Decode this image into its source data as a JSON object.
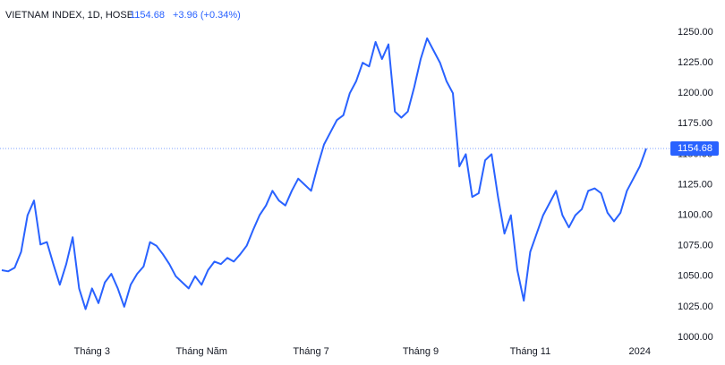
{
  "chart_data": {
    "type": "line",
    "title": "VIETNAM INDEX, 1D, HOSE",
    "subtitle": "+3.96 (+0.34%)",
    "color": "#2962ff",
    "grid": false,
    "categories": [
      null,
      null,
      null,
      null,
      null,
      null,
      null,
      null,
      null,
      null,
      null,
      null,
      null,
      null,
      "Tháng 3",
      null,
      null,
      null,
      null,
      null,
      null,
      null,
      null,
      null,
      null,
      null,
      null,
      null,
      null,
      null,
      null,
      "Tháng Năm",
      null,
      null,
      null,
      null,
      null,
      null,
      null,
      null,
      null,
      null,
      null,
      null,
      null,
      null,
      null,
      null,
      "Tháng 7",
      null,
      null,
      null,
      null,
      null,
      null,
      null,
      null,
      null,
      null,
      null,
      null,
      null,
      null,
      null,
      null,
      "Tháng 9",
      null,
      null,
      null,
      null,
      null,
      null,
      null,
      null,
      null,
      null,
      null,
      null,
      null,
      null,
      null,
      null,
      "Tháng 11",
      null,
      null,
      null,
      null,
      null,
      null,
      null,
      null,
      null,
      null,
      null,
      null,
      null,
      null,
      null,
      null,
      "2024",
      null
    ],
    "values": [
      1055,
      1054,
      1057,
      1070,
      1100,
      1112,
      1076,
      1078,
      1060,
      1043,
      1060,
      1082,
      1040,
      1023,
      1040,
      1028,
      1045,
      1052,
      1040,
      1025,
      1043,
      1052,
      1058,
      1078,
      1075,
      1068,
      1060,
      1050,
      1045,
      1040,
      1050,
      1043,
      1055,
      1062,
      1060,
      1065,
      1062,
      1068,
      1075,
      1088,
      1100,
      1108,
      1120,
      1112,
      1108,
      1120,
      1130,
      1125,
      1120,
      1140,
      1158,
      1168,
      1178,
      1182,
      1200,
      1210,
      1225,
      1222,
      1242,
      1228,
      1240,
      1185,
      1180,
      1185,
      1205,
      1228,
      1245,
      1235,
      1225,
      1210,
      1200,
      1140,
      1150,
      1115,
      1118,
      1145,
      1150,
      1115,
      1085,
      1100,
      1055,
      1030,
      1070,
      1085,
      1100,
      1110,
      1120,
      1100,
      1090,
      1100,
      1105,
      1120,
      1122,
      1118,
      1102,
      1095,
      1102,
      1120,
      1130,
      1140,
      1154.68
    ],
    "ylim": [
      1000,
      1250
    ],
    "yticks": [
      {
        "value": 1000,
        "label": "1000.00"
      },
      {
        "value": 1025,
        "label": "1025.00"
      },
      {
        "value": 1050,
        "label": "1050.00"
      },
      {
        "value": 1075,
        "label": "1075.00"
      },
      {
        "value": 1100,
        "label": "1100.00"
      },
      {
        "value": 1125,
        "label": "1125.00"
      },
      {
        "value": 1150,
        "label": "1150.00"
      },
      {
        "value": 1175,
        "label": "1175.00"
      },
      {
        "value": 1200,
        "label": "1200.00"
      },
      {
        "value": 1225,
        "label": "1225.00"
      },
      {
        "value": 1250,
        "label": "1250.00"
      }
    ]
  }
}
